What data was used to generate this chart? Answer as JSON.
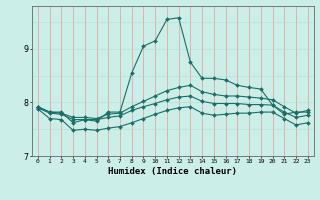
{
  "xlabel": "Humidex (Indice chaleur)",
  "background_color": "#cceee8",
  "grid_color_v": "#e89898",
  "grid_color_h": "#b8ddd8",
  "line_color": "#1a6e65",
  "xlim": [
    -0.5,
    23.5
  ],
  "ylim": [
    7.0,
    9.8
  ],
  "yticks": [
    7,
    8,
    9
  ],
  "xticks": [
    0,
    1,
    2,
    3,
    4,
    5,
    6,
    7,
    8,
    9,
    10,
    11,
    12,
    13,
    14,
    15,
    16,
    17,
    18,
    19,
    20,
    21,
    22,
    23
  ],
  "series": [
    {
      "x": [
        0,
        1,
        2,
        3,
        4,
        5,
        6,
        7,
        8,
        9,
        10,
        11,
        12,
        13,
        14,
        15,
        16,
        17,
        18,
        19,
        20,
        21,
        22,
        23
      ],
      "y": [
        7.92,
        7.82,
        7.82,
        7.62,
        7.68,
        7.65,
        7.82,
        7.82,
        8.55,
        9.05,
        9.15,
        9.55,
        9.58,
        8.75,
        8.45,
        8.45,
        8.42,
        8.32,
        8.28,
        8.25,
        7.95,
        7.78,
        7.82,
        7.82
      ]
    },
    {
      "x": [
        0,
        1,
        2,
        3,
        4,
        5,
        6,
        7,
        8,
        9,
        10,
        11,
        12,
        13,
        14,
        15,
        16,
        17,
        18,
        19,
        20,
        21,
        22,
        23
      ],
      "y": [
        7.92,
        7.82,
        7.8,
        7.72,
        7.72,
        7.7,
        7.78,
        7.8,
        7.92,
        8.02,
        8.12,
        8.22,
        8.28,
        8.32,
        8.2,
        8.15,
        8.12,
        8.12,
        8.1,
        8.08,
        8.05,
        7.92,
        7.8,
        7.85
      ]
    },
    {
      "x": [
        0,
        1,
        2,
        3,
        4,
        5,
        6,
        7,
        8,
        9,
        10,
        11,
        12,
        13,
        14,
        15,
        16,
        17,
        18,
        19,
        20,
        21,
        22,
        23
      ],
      "y": [
        7.9,
        7.8,
        7.78,
        7.68,
        7.68,
        7.68,
        7.72,
        7.75,
        7.85,
        7.92,
        7.98,
        8.05,
        8.1,
        8.12,
        8.02,
        7.98,
        7.98,
        7.98,
        7.96,
        7.96,
        7.95,
        7.82,
        7.72,
        7.76
      ]
    },
    {
      "x": [
        0,
        1,
        2,
        3,
        4,
        5,
        6,
        7,
        8,
        9,
        10,
        11,
        12,
        13,
        14,
        15,
        16,
        17,
        18,
        19,
        20,
        21,
        22,
        23
      ],
      "y": [
        7.88,
        7.7,
        7.68,
        7.48,
        7.5,
        7.48,
        7.52,
        7.55,
        7.62,
        7.7,
        7.78,
        7.85,
        7.9,
        7.92,
        7.8,
        7.76,
        7.78,
        7.8,
        7.8,
        7.82,
        7.82,
        7.7,
        7.58,
        7.62
      ]
    }
  ]
}
